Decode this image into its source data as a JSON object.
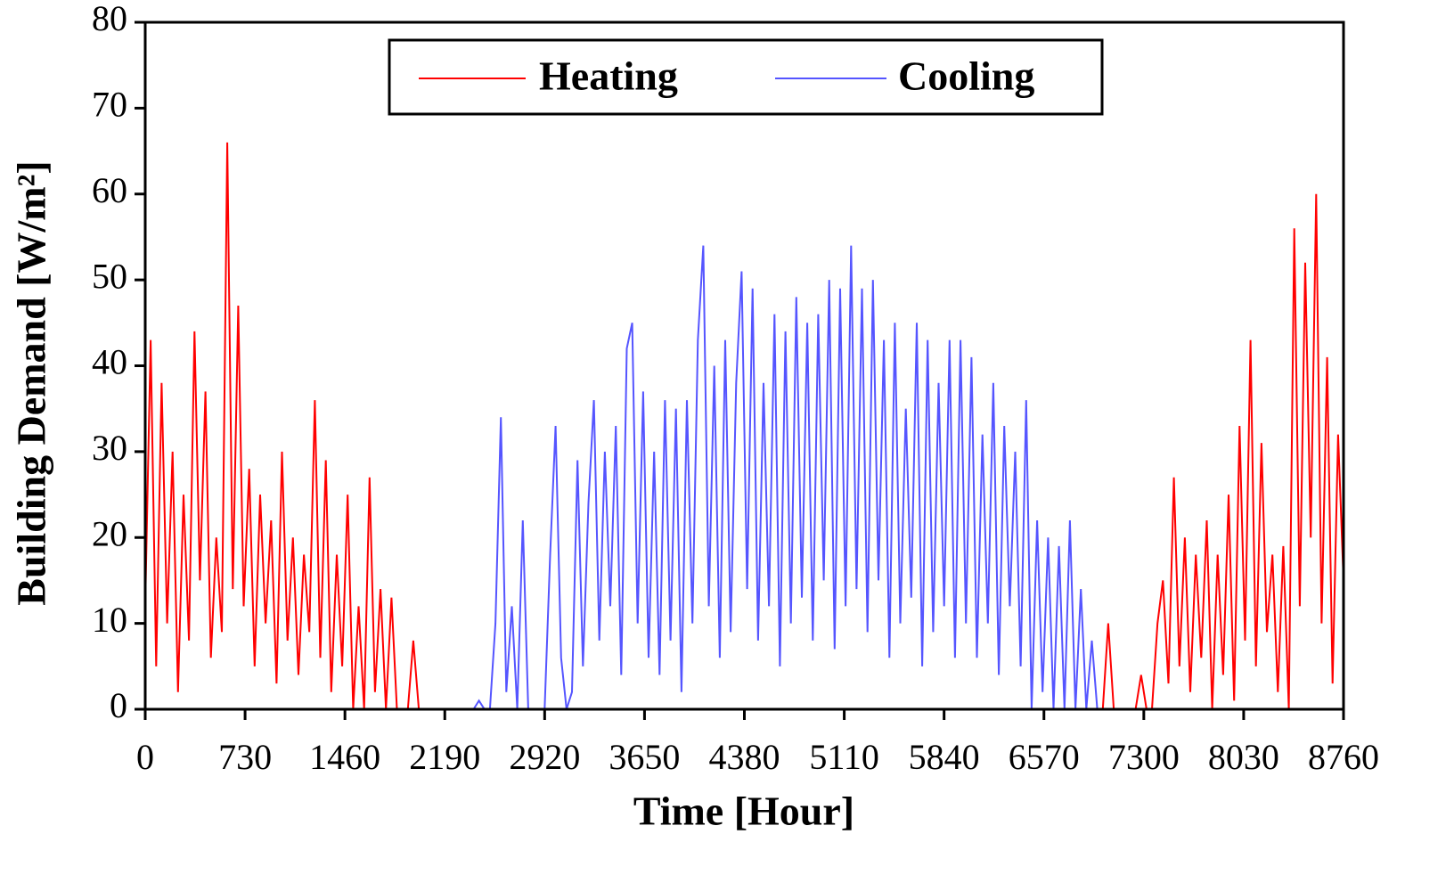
{
  "chart_data": {
    "type": "line",
    "xlabel": "Time [Hour]",
    "ylabel": "Building Demand [W/m²]",
    "xlim": [
      0,
      8760
    ],
    "xticks": [
      0,
      730,
      1460,
      2190,
      2920,
      3650,
      4380,
      5110,
      5840,
      6570,
      7300,
      8030,
      8760
    ],
    "ylim": [
      0,
      80
    ],
    "yticks": [
      0,
      10,
      20,
      30,
      40,
      50,
      60,
      70,
      80
    ],
    "legend": "top-center",
    "series": [
      {
        "name": "Heating",
        "color": "#ff0000",
        "x": [
          0,
          40,
          80,
          120,
          160,
          200,
          240,
          280,
          320,
          360,
          400,
          440,
          480,
          520,
          560,
          600,
          640,
          680,
          720,
          760,
          800,
          840,
          880,
          920,
          960,
          1000,
          1040,
          1080,
          1120,
          1160,
          1200,
          1240,
          1280,
          1320,
          1360,
          1400,
          1440,
          1480,
          1520,
          1560,
          1600,
          1640,
          1680,
          1720,
          1760,
          1800,
          1840,
          1880,
          1920,
          1960,
          2000,
          2040,
          2080,
          2120,
          7000,
          7040,
          7080,
          7120,
          7160,
          7200,
          7240,
          7280,
          7320,
          7360,
          7400,
          7440,
          7480,
          7520,
          7560,
          7600,
          7640,
          7680,
          7720,
          7760,
          7800,
          7840,
          7880,
          7920,
          7960,
          8000,
          8040,
          8080,
          8120,
          8160,
          8200,
          8240,
          8280,
          8320,
          8360,
          8400,
          8440,
          8480,
          8520,
          8560,
          8600,
          8640,
          8680,
          8720,
          8760
        ],
        "values": [
          12,
          43,
          5,
          38,
          10,
          30,
          2,
          25,
          8,
          44,
          15,
          37,
          6,
          20,
          9,
          66,
          14,
          47,
          12,
          28,
          5,
          25,
          10,
          22,
          3,
          30,
          8,
          20,
          4,
          18,
          9,
          36,
          6,
          29,
          2,
          18,
          5,
          25,
          0,
          12,
          0,
          27,
          2,
          14,
          0,
          13,
          0,
          0,
          0,
          8,
          0,
          0,
          0,
          null,
          0,
          10,
          0,
          0,
          0,
          0,
          0,
          4,
          0,
          0,
          10,
          15,
          3,
          27,
          5,
          20,
          2,
          18,
          6,
          22,
          0,
          18,
          4,
          25,
          1,
          33,
          8,
          43,
          5,
          31,
          9,
          18,
          2,
          19,
          0,
          56,
          12,
          52,
          20,
          60,
          10,
          41,
          3,
          32,
          15
        ]
      },
      {
        "name": "Cooling",
        "color": "#5555ff",
        "x": [
          2400,
          2440,
          2480,
          2520,
          2560,
          2600,
          2640,
          2680,
          2720,
          2760,
          2800,
          2840,
          2880,
          2920,
          2960,
          3000,
          3040,
          3080,
          3120,
          3160,
          3200,
          3240,
          3280,
          3320,
          3360,
          3400,
          3440,
          3480,
          3520,
          3560,
          3600,
          3640,
          3680,
          3720,
          3760,
          3800,
          3840,
          3880,
          3920,
          3960,
          4000,
          4040,
          4080,
          4120,
          4160,
          4200,
          4240,
          4280,
          4320,
          4360,
          4400,
          4440,
          4480,
          4520,
          4560,
          4600,
          4640,
          4680,
          4720,
          4760,
          4800,
          4840,
          4880,
          4920,
          4960,
          5000,
          5040,
          5080,
          5120,
          5160,
          5200,
          5240,
          5280,
          5320,
          5360,
          5400,
          5440,
          5480,
          5520,
          5560,
          5600,
          5640,
          5680,
          5720,
          5760,
          5800,
          5840,
          5880,
          5920,
          5960,
          6000,
          6040,
          6080,
          6120,
          6160,
          6200,
          6240,
          6280,
          6320,
          6360,
          6400,
          6440,
          6480,
          6520,
          6560,
          6600,
          6640,
          6680,
          6720,
          6760,
          6800,
          6840,
          6880,
          6920,
          6960,
          7000
        ],
        "values": [
          0,
          1,
          0,
          0,
          10,
          34,
          2,
          12,
          0,
          22,
          0,
          0,
          0,
          0,
          18,
          33,
          6,
          0,
          2,
          29,
          5,
          24,
          36,
          8,
          30,
          12,
          33,
          4,
          42,
          45,
          10,
          37,
          6,
          30,
          4,
          36,
          8,
          35,
          2,
          36,
          10,
          43,
          54,
          12,
          40,
          6,
          43,
          9,
          38,
          51,
          14,
          49,
          8,
          38,
          12,
          46,
          5,
          44,
          10,
          48,
          13,
          45,
          8,
          46,
          15,
          50,
          7,
          49,
          12,
          54,
          14,
          49,
          9,
          50,
          15,
          43,
          6,
          45,
          10,
          35,
          13,
          45,
          5,
          43,
          9,
          38,
          12,
          43,
          6,
          43,
          10,
          41,
          6,
          32,
          10,
          38,
          4,
          33,
          12,
          30,
          5,
          36,
          0,
          22,
          2,
          20,
          0,
          19,
          0,
          22,
          0,
          14,
          0,
          8,
          0,
          0
        ]
      }
    ]
  }
}
